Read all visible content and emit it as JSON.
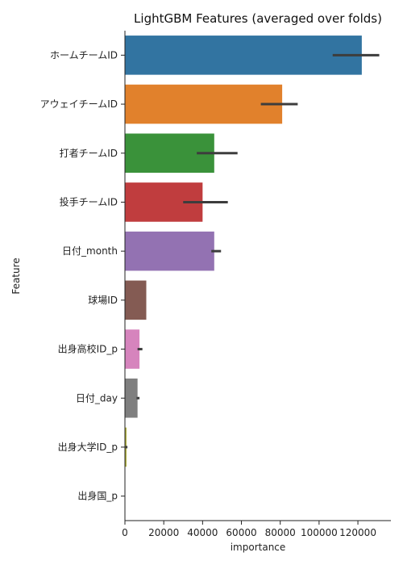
{
  "chart_data": {
    "type": "bar",
    "orientation": "horizontal",
    "title": "LightGBM Features (averaged over folds)",
    "xlabel": "importance",
    "ylabel": "Feature",
    "xlim": [
      0,
      137000
    ],
    "xticks": [
      0,
      20000,
      40000,
      60000,
      80000,
      100000,
      120000
    ],
    "grid": false,
    "categories": [
      "ホームチームID",
      "アウェイチームID",
      "打者チームID",
      "投手チームID",
      "日付_month",
      "球場ID",
      "出身高校ID_p",
      "日付_day",
      "出身大学ID_p",
      "出身国_p"
    ],
    "values": [
      122000,
      81000,
      46000,
      40000,
      46000,
      11000,
      7500,
      6500,
      800,
      0
    ],
    "error_low": [
      107000,
      70000,
      37000,
      30000,
      44500,
      11000,
      6500,
      6000,
      300,
      0
    ],
    "error_high": [
      131000,
      89000,
      58000,
      53000,
      49500,
      11000,
      9000,
      7500,
      1300,
      0
    ],
    "colors": [
      "#3274a1",
      "#e1812c",
      "#3a923a",
      "#c03d3e",
      "#9372b2",
      "#845b53",
      "#d684bd",
      "#7f7f7f",
      "#a9aa35",
      "#2ea2b5"
    ]
  }
}
